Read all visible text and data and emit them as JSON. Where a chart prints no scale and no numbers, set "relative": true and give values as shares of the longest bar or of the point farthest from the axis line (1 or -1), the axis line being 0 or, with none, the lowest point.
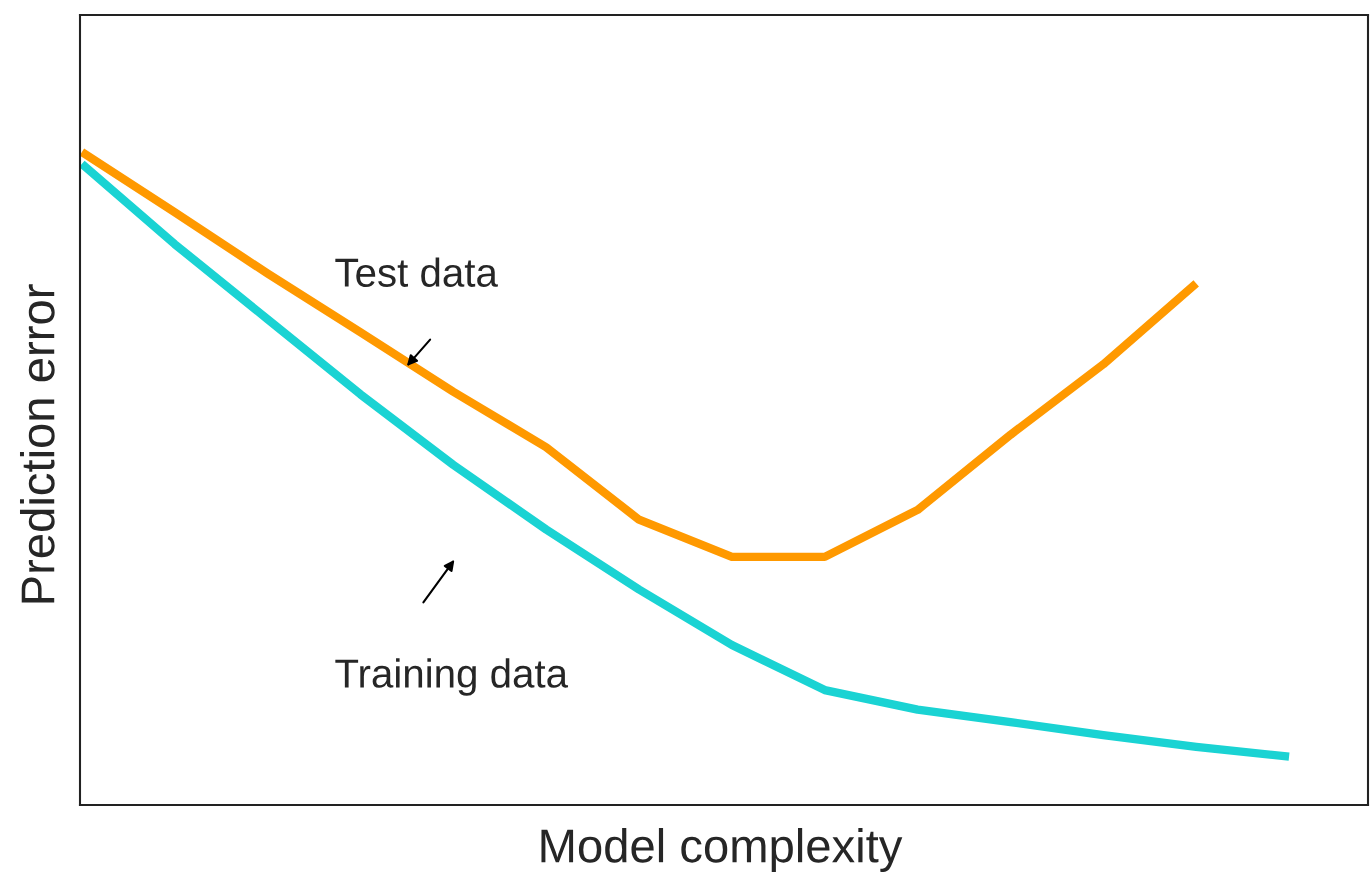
{
  "chart_data": {
    "type": "line",
    "relative": true,
    "xlabel": "Model complexity",
    "ylabel": "Prediction error",
    "categories": [
      null,
      null,
      null,
      null,
      null,
      null,
      null,
      null,
      null,
      null,
      null,
      null,
      null,
      null
    ],
    "series": [
      {
        "color": "#ff9900",
        "values": [
          1.0,
          0.908,
          0.814,
          0.724,
          0.633,
          0.548,
          0.437,
          0.38,
          0.38,
          0.452,
          0.567,
          0.675,
          0.799,
          null
        ]
      },
      {
        "color": "#1ad3d3",
        "values": [
          0.982,
          0.859,
          0.744,
          0.629,
          0.521,
          0.422,
          0.33,
          0.245,
          0.176,
          0.146,
          0.127,
          0.107,
          0.089,
          0.074
        ]
      }
    ],
    "annotations": [
      "Test data",
      "Training data"
    ],
    "marker": "none",
    "line_style": "solid"
  }
}
